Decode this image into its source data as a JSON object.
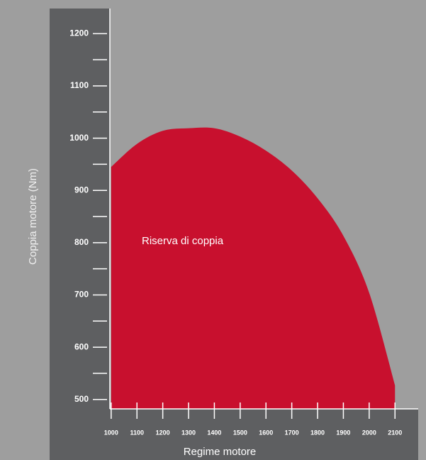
{
  "chart_data": {
    "type": "area",
    "annotation": "Riserva di coppia",
    "y_label": "Coppia motore (Nm)",
    "x_label": "Regime motore",
    "x": [
      1000,
      1100,
      1200,
      1300,
      1400,
      1500,
      1600,
      1700,
      1800,
      1900,
      2000,
      2100
    ],
    "series": [
      {
        "color": "#c8102e",
        "values": [
          945,
          989,
          1014,
          1019,
          1019,
          1003,
          976,
          938,
          885,
          813,
          704,
          527
        ]
      }
    ],
    "xlim": [
      995,
      2190
    ],
    "xticks": [
      1000,
      1100,
      1200,
      1300,
      1400,
      1500,
      1600,
      1700,
      1800,
      1900,
      2000,
      2100
    ],
    "ylim": [
      482,
      1248
    ],
    "yticks": [
      500,
      600,
      700,
      800,
      900,
      1000,
      1100,
      1200
    ],
    "yminorticks": [
      550,
      650,
      750,
      850,
      950,
      1050,
      1150
    ]
  }
}
